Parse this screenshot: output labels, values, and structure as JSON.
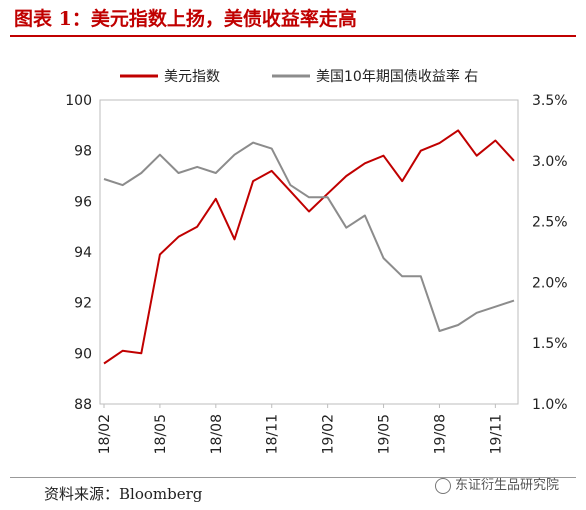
{
  "figure": {
    "title": "图表 1：美元指数上扬，美债收益率走高",
    "source": "资料来源：Bloomberg",
    "watermark": "东证衍生品研究院"
  },
  "colors": {
    "dxy": "#c00000",
    "yield": "#8c8c8c",
    "title": "#c00000"
  },
  "chart_data": {
    "type": "line",
    "x": [
      "18/02",
      "18/03",
      "18/04",
      "18/05",
      "18/06",
      "18/07",
      "18/08",
      "18/09",
      "18/10",
      "18/11",
      "18/12",
      "19/01",
      "19/02",
      "19/03",
      "19/04",
      "19/05",
      "19/06",
      "19/07",
      "19/08",
      "19/09",
      "19/10",
      "19/11",
      "19/12"
    ],
    "x_ticks": [
      "18/02",
      "18/05",
      "18/08",
      "18/11",
      "19/02",
      "19/05",
      "19/08",
      "19/11"
    ],
    "left_axis": {
      "ylim": [
        88,
        100
      ],
      "ticks": [
        "88",
        "90",
        "92",
        "94",
        "96",
        "98",
        "100"
      ]
    },
    "right_axis": {
      "ylim": [
        1.0,
        3.5
      ],
      "ticks": [
        "1.0%",
        "1.5%",
        "2.0%",
        "2.5%",
        "3.0%",
        "3.5%"
      ]
    },
    "series": [
      {
        "name": "美元指数",
        "axis": "left",
        "values": [
          89.6,
          90.1,
          90.0,
          93.9,
          94.6,
          95.0,
          96.1,
          94.5,
          96.8,
          97.2,
          96.4,
          95.6,
          96.3,
          97.0,
          97.5,
          97.8,
          96.8,
          98.0,
          98.3,
          98.8,
          97.8,
          98.4,
          97.6
        ]
      },
      {
        "name": "美国10年期国债收益率 右",
        "axis": "right",
        "values": [
          2.85,
          2.8,
          2.9,
          3.05,
          2.9,
          2.95,
          2.9,
          3.05,
          3.15,
          3.1,
          2.8,
          2.7,
          2.7,
          2.45,
          2.55,
          2.2,
          2.05,
          2.05,
          1.6,
          1.65,
          1.75,
          1.8,
          1.85
        ]
      }
    ]
  }
}
